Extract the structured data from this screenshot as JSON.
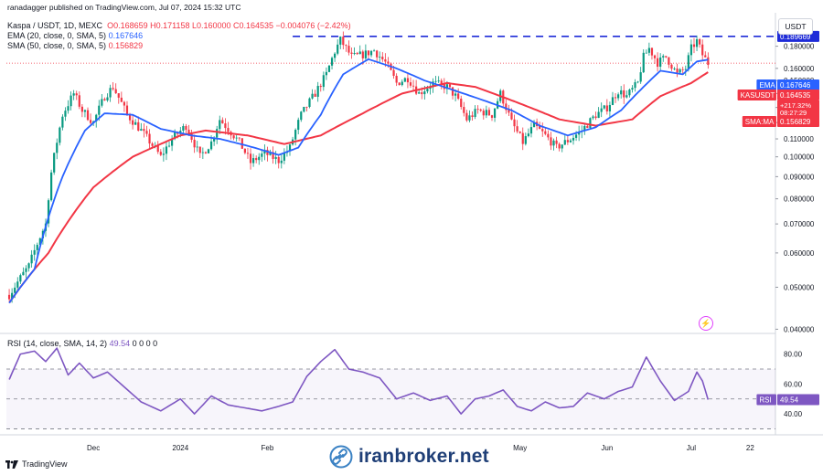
{
  "header": {
    "published": "ranadagger published on TradingView.com, Jul 07, 2024 15:32 UTC",
    "symbol": "Kaspa / USDT, 1D, MEXC",
    "ohlc": "O0.168659 H0.171158 L0.160000 C0.164535 −0.004076 (−2.42%)",
    "ema_legend_label": "EMA (20, close, 0, SMA, 5)",
    "ema_value": "0.167646",
    "sma_legend_label": "SMA (50, close, 0, SMA, 5)",
    "sma_value": "0.156829",
    "rsi_legend_label": "RSI (14, close, SMA, 14, 2)",
    "rsi_value": "49.54",
    "rsi_extra": "0 0 0 0",
    "currency_button": "USDT"
  },
  "badges": {
    "ema_tag": "EMA",
    "ema_price": "0.167646",
    "sym_tag": "KASUSDT",
    "sym_price": "0.164535",
    "change": "+217.32%",
    "countdown": "08:27:29",
    "sma_tag": "SMA:MA",
    "sma_price": "0.156829",
    "resistance": "0.189669",
    "rsi_tag": "RSI",
    "rsi_price": "49.54"
  },
  "watermark": "iranbroker.net",
  "footer": "TradingView",
  "colors": {
    "up": "#089981",
    "down": "#f23645",
    "ema": "#2962ff",
    "sma": "#f23645",
    "rsi": "#7e57c2",
    "resistance": "#1e2bd8"
  },
  "chart_data": {
    "type": "candlestick",
    "scale": "log",
    "price_axis_labels": [
      "0.180000",
      "0.160000",
      "0.150000",
      "0.140000",
      "0.130000",
      "0.120000",
      "0.110000",
      "0.100000",
      "0.090000",
      "0.080000",
      "0.070000",
      "0.060000",
      "0.050000",
      "0.040000"
    ],
    "price_axis_ticks": [
      0.18,
      0.16,
      0.15,
      0.14,
      0.13,
      0.12,
      0.11,
      0.1,
      0.09,
      0.08,
      0.07,
      0.06,
      0.05,
      0.04
    ],
    "time_axis_labels": [
      "Dec",
      "2024",
      "Feb",
      "May",
      "Jun",
      "Jul",
      "22"
    ],
    "time_axis_dates": [
      "2023-12-01",
      "2024-01-01",
      "2024-02-01",
      "2024-05-01",
      "2024-06-01",
      "2024-07-01",
      "2024-07-22"
    ],
    "first_date": "2023-11-01",
    "last_date": "2024-07-07",
    "resistance_level": 0.189669,
    "resistance_start": "2024-02-10",
    "close_path": [
      [
        "2023-11-01",
        0.048
      ],
      [
        "2023-11-08",
        0.056
      ],
      [
        "2023-11-14",
        0.07
      ],
      [
        "2023-11-16",
        0.092
      ],
      [
        "2023-11-20",
        0.125
      ],
      [
        "2023-11-24",
        0.14
      ],
      [
        "2023-11-27",
        0.128
      ],
      [
        "2023-12-01",
        0.12
      ],
      [
        "2023-12-05",
        0.138
      ],
      [
        "2023-12-08",
        0.145
      ],
      [
        "2023-12-13",
        0.125
      ],
      [
        "2023-12-18",
        0.115
      ],
      [
        "2023-12-25",
        0.1
      ],
      [
        "2023-12-29",
        0.11
      ],
      [
        "2024-01-03",
        0.118
      ],
      [
        "2024-01-08",
        0.1
      ],
      [
        "2024-01-12",
        0.108
      ],
      [
        "2024-01-15",
        0.122
      ],
      [
        "2024-01-22",
        0.108
      ],
      [
        "2024-01-26",
        0.097
      ],
      [
        "2024-01-31",
        0.102
      ],
      [
        "2024-02-05",
        0.098
      ],
      [
        "2024-02-09",
        0.105
      ],
      [
        "2024-02-13",
        0.125
      ],
      [
        "2024-02-18",
        0.14
      ],
      [
        "2024-02-22",
        0.155
      ],
      [
        "2024-02-25",
        0.175
      ],
      [
        "2024-02-27",
        0.186
      ],
      [
        "2024-03-02",
        0.17
      ],
      [
        "2024-03-06",
        0.172
      ],
      [
        "2024-03-10",
        0.176
      ],
      [
        "2024-03-14",
        0.165
      ],
      [
        "2024-03-18",
        0.148
      ],
      [
        "2024-03-22",
        0.152
      ],
      [
        "2024-03-26",
        0.14
      ],
      [
        "2024-03-31",
        0.148
      ],
      [
        "2024-04-05",
        0.145
      ],
      [
        "2024-04-08",
        0.138
      ],
      [
        "2024-04-12",
        0.122
      ],
      [
        "2024-04-16",
        0.128
      ],
      [
        "2024-04-21",
        0.125
      ],
      [
        "2024-04-24",
        0.14
      ],
      [
        "2024-04-28",
        0.12
      ],
      [
        "2024-05-02",
        0.108
      ],
      [
        "2024-05-06",
        0.118
      ],
      [
        "2024-05-10",
        0.112
      ],
      [
        "2024-05-14",
        0.105
      ],
      [
        "2024-05-19",
        0.11
      ],
      [
        "2024-05-23",
        0.115
      ],
      [
        "2024-05-28",
        0.125
      ],
      [
        "2024-06-01",
        0.13
      ],
      [
        "2024-06-05",
        0.142
      ],
      [
        "2024-06-08",
        0.138
      ],
      [
        "2024-06-12",
        0.148
      ],
      [
        "2024-06-14",
        0.17
      ],
      [
        "2024-06-16",
        0.178
      ],
      [
        "2024-06-19",
        0.165
      ],
      [
        "2024-06-22",
        0.17
      ],
      [
        "2024-06-26",
        0.155
      ],
      [
        "2024-06-29",
        0.16
      ],
      [
        "2024-07-01",
        0.178
      ],
      [
        "2024-07-03",
        0.185
      ],
      [
        "2024-07-05",
        0.172
      ],
      [
        "2024-07-07",
        0.1645
      ]
    ],
    "ema20_path": [
      [
        "2023-11-01",
        0.046
      ],
      [
        "2023-11-10",
        0.055
      ],
      [
        "2023-11-20",
        0.09
      ],
      [
        "2023-11-28",
        0.115
      ],
      [
        "2023-12-05",
        0.126
      ],
      [
        "2023-12-15",
        0.125
      ],
      [
        "2023-12-25",
        0.116
      ],
      [
        "2024-01-05",
        0.112
      ],
      [
        "2024-01-15",
        0.11
      ],
      [
        "2024-01-25",
        0.106
      ],
      [
        "2024-02-05",
        0.101
      ],
      [
        "2024-02-12",
        0.105
      ],
      [
        "2024-02-20",
        0.125
      ],
      [
        "2024-02-28",
        0.155
      ],
      [
        "2024-03-08",
        0.168
      ],
      [
        "2024-03-18",
        0.16
      ],
      [
        "2024-03-28",
        0.15
      ],
      [
        "2024-04-08",
        0.142
      ],
      [
        "2024-04-18",
        0.135
      ],
      [
        "2024-04-28",
        0.128
      ],
      [
        "2024-05-08",
        0.118
      ],
      [
        "2024-05-18",
        0.112
      ],
      [
        "2024-05-28",
        0.117
      ],
      [
        "2024-06-06",
        0.128
      ],
      [
        "2024-06-14",
        0.145
      ],
      [
        "2024-06-20",
        0.158
      ],
      [
        "2024-06-28",
        0.155
      ],
      [
        "2024-07-03",
        0.166
      ],
      [
        "2024-07-07",
        0.1676
      ]
    ],
    "sma50_path": [
      [
        "2023-11-01",
        0.046
      ],
      [
        "2023-11-15",
        0.06
      ],
      [
        "2023-12-01",
        0.085
      ],
      [
        "2023-12-15",
        0.1
      ],
      [
        "2024-01-01",
        0.112
      ],
      [
        "2024-01-10",
        0.115
      ],
      [
        "2024-01-25",
        0.112
      ],
      [
        "2024-02-07",
        0.107
      ],
      [
        "2024-02-20",
        0.112
      ],
      [
        "2024-03-05",
        0.125
      ],
      [
        "2024-03-20",
        0.14
      ],
      [
        "2024-04-05",
        0.148
      ],
      [
        "2024-04-15",
        0.145
      ],
      [
        "2024-04-28",
        0.135
      ],
      [
        "2024-05-15",
        0.122
      ],
      [
        "2024-05-28",
        0.118
      ],
      [
        "2024-06-10",
        0.122
      ],
      [
        "2024-06-20",
        0.138
      ],
      [
        "2024-07-01",
        0.148
      ],
      [
        "2024-07-07",
        0.1568
      ]
    ],
    "rsi": {
      "ticks": [
        80,
        60,
        40
      ],
      "tick_labels": [
        "80.00",
        "60.00",
        "40.00"
      ],
      "upper_band": 70,
      "mid_band": 50,
      "lower_band": 30,
      "path": [
        [
          "2023-11-01",
          63
        ],
        [
          "2023-11-05",
          80
        ],
        [
          "2023-11-10",
          82
        ],
        [
          "2023-11-14",
          75
        ],
        [
          "2023-11-18",
          84
        ],
        [
          "2023-11-22",
          66
        ],
        [
          "2023-11-26",
          74
        ],
        [
          "2023-12-01",
          64
        ],
        [
          "2023-12-06",
          68
        ],
        [
          "2023-12-12",
          58
        ],
        [
          "2023-12-18",
          48
        ],
        [
          "2023-12-25",
          42
        ],
        [
          "2024-01-01",
          50
        ],
        [
          "2024-01-06",
          40
        ],
        [
          "2024-01-12",
          52
        ],
        [
          "2024-01-18",
          46
        ],
        [
          "2024-01-24",
          44
        ],
        [
          "2024-01-30",
          42
        ],
        [
          "2024-02-05",
          45
        ],
        [
          "2024-02-10",
          48
        ],
        [
          "2024-02-15",
          65
        ],
        [
          "2024-02-20",
          75
        ],
        [
          "2024-02-25",
          83
        ],
        [
          "2024-03-01",
          70
        ],
        [
          "2024-03-06",
          68
        ],
        [
          "2024-03-12",
          64
        ],
        [
          "2024-03-18",
          50
        ],
        [
          "2024-03-24",
          54
        ],
        [
          "2024-03-30",
          49
        ],
        [
          "2024-04-05",
          52
        ],
        [
          "2024-04-10",
          40
        ],
        [
          "2024-04-15",
          50
        ],
        [
          "2024-04-20",
          52
        ],
        [
          "2024-04-25",
          56
        ],
        [
          "2024-04-30",
          45
        ],
        [
          "2024-05-05",
          42
        ],
        [
          "2024-05-10",
          48
        ],
        [
          "2024-05-15",
          44
        ],
        [
          "2024-05-20",
          45
        ],
        [
          "2024-05-25",
          54
        ],
        [
          "2024-05-31",
          50
        ],
        [
          "2024-06-05",
          55
        ],
        [
          "2024-06-10",
          58
        ],
        [
          "2024-06-15",
          78
        ],
        [
          "2024-06-20",
          62
        ],
        [
          "2024-06-25",
          49
        ],
        [
          "2024-06-30",
          55
        ],
        [
          "2024-07-03",
          68
        ],
        [
          "2024-07-05",
          62
        ],
        [
          "2024-07-07",
          49.5
        ]
      ]
    }
  }
}
